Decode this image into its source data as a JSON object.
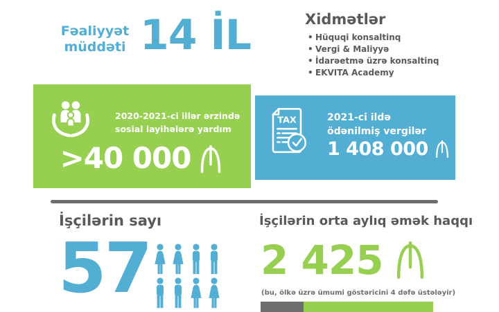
{
  "activity": {
    "label_line1": "Fəaliyyət",
    "label_line2": "müddəti",
    "value": "14 İL"
  },
  "services": {
    "title": "Xidmətlər",
    "items": [
      "Hüquqi konsaltinq",
      "Vergi & Maliyyə",
      "İdarəetmə üzrə konsaltinq",
      "EKVITA Academy"
    ]
  },
  "social_aid": {
    "label_line1": "2020-2021-ci illər ərzində",
    "label_line2": "sosial layihələrə yardım",
    "amount": ">40 000",
    "currency": "₼"
  },
  "taxes": {
    "icon_text": "TAX",
    "label_line1": "2021-ci ildə",
    "label_line2": "ödənilmiş vergilər",
    "amount": "1 408 000",
    "currency": "₼"
  },
  "employees": {
    "title": "İşçilərin sayı",
    "count": "57",
    "people": [
      "female",
      "female",
      "male",
      "male",
      "male",
      "male",
      "female",
      "female"
    ]
  },
  "salary": {
    "title": "İşçilərin orta aylıq əmək haqqı",
    "amount": "2 425",
    "currency": "₼",
    "note": "(bu, ölkə üzrə ümumi göstəricini 4 dəfə üstələyir)",
    "bar": {
      "gray_percent": 25,
      "green_percent": 75
    }
  },
  "colors": {
    "blue": "#52aed3",
    "green": "#97cf51",
    "dark_gray": "#58595b",
    "mid_gray": "#6d6e70",
    "white": "#ffffff"
  }
}
